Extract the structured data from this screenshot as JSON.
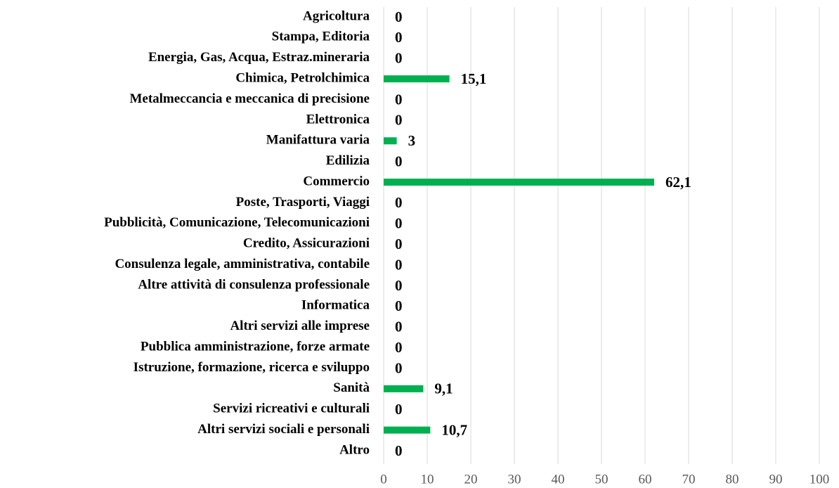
{
  "chart_data": {
    "type": "barh",
    "categories": [
      "Agricoltura",
      "Stampa, Editoria",
      "Energia, Gas, Acqua, Estraz.mineraria",
      "Chimica, Petrolchimica",
      "Metalmeccancia e meccanica di precisione",
      "Elettronica",
      "Manifattura varia",
      "Edilizia",
      "Commercio",
      "Poste, Trasporti, Viaggi",
      "Pubblicità, Comunicazione, Telecomunicazioni",
      "Credito, Assicurazioni",
      "Consulenza legale, amministrativa, contabile",
      "Altre attività di consulenza professionale",
      "Informatica",
      "Altri servizi alle imprese",
      "Pubblica amministrazione, forze armate",
      "Istruzione, formazione, ricerca e sviluppo",
      "Sanità",
      "Servizi ricreativi e culturali",
      "Altri servizi sociali e personali",
      "Altro"
    ],
    "values": [
      0,
      0,
      0,
      15.1,
      0,
      0,
      3,
      0,
      62.1,
      0,
      0,
      0,
      0,
      0,
      0,
      0,
      0,
      0,
      9.1,
      0,
      10.7,
      0
    ],
    "value_labels": [
      "0",
      "0",
      "0",
      "15,1",
      "0",
      "0",
      "3",
      "0",
      "62,1",
      "0",
      "0",
      "0",
      "0",
      "0",
      "0",
      "0",
      "0",
      "0",
      "9,1",
      "0",
      "10,7",
      "0"
    ],
    "color": "#00b050",
    "xlim": [
      0,
      100
    ],
    "xticks": [
      0,
      10,
      20,
      30,
      40,
      50,
      60,
      70,
      80,
      90,
      100
    ],
    "grid": true
  }
}
